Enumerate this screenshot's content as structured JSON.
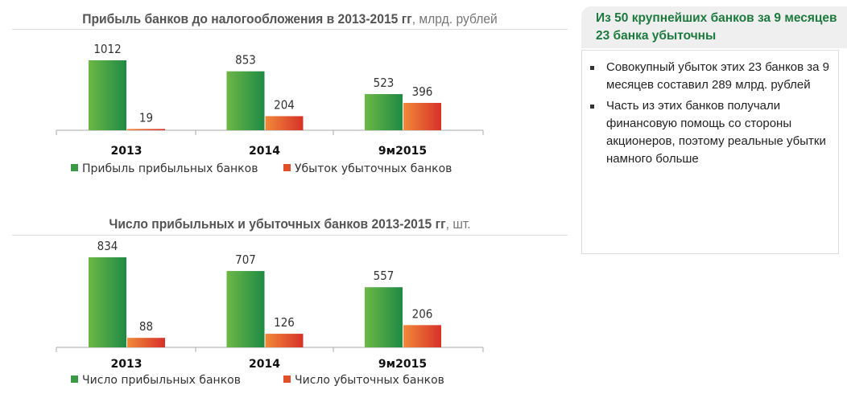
{
  "chart_data": [
    {
      "type": "bar",
      "title": "Прибыль банков до налогообложения в 2013-2015 гг",
      "unit": ", млрд. рублей",
      "categories": [
        "2013",
        "2014",
        "9м2015"
      ],
      "series": [
        {
          "name": "Прибыль прибыльных банков",
          "values": [
            1012,
            853,
            523
          ],
          "color": "#3a9a45"
        },
        {
          "name": "Убыток убыточных банков",
          "values": [
            19,
            204,
            396
          ],
          "color": "#e2502a"
        }
      ],
      "legend": "bottom"
    },
    {
      "type": "bar",
      "title": "Число прибыльных и убыточных банков  2013-2015 гг",
      "unit": ", шт.",
      "categories": [
        "2013",
        "2014",
        "9м2015"
      ],
      "series": [
        {
          "name": "Число прибыльных банков",
          "values": [
            834,
            707,
            557
          ],
          "color": "#3a9a45"
        },
        {
          "name": "Число убыточных банков",
          "values": [
            88,
            126,
            206
          ],
          "color": "#e2502a"
        }
      ],
      "legend": "bottom"
    }
  ],
  "panel": {
    "header": "Из 50 крупнейших банков за 9 месяцев 23 банка убыточны",
    "bullets": [
      "Совокупный убыток этих 23 банков за 9 месяцев составил 289 млрд. рублей",
      "Часть из этих банков получали финансовую помощь со стороны акционеров, поэтому реальные убытки намного больше"
    ]
  }
}
